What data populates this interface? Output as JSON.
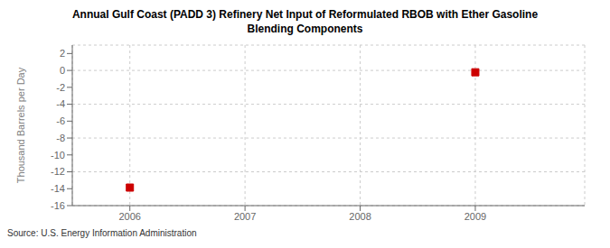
{
  "chart_data": {
    "type": "scatter",
    "title": "Annual Gulf Coast (PADD 3) Refinery Net Input of Reformulated RBOB with Ether Gasoline\nBlending Components",
    "ylabel": "Thousand Barrels per Day",
    "annotations": [
      "Source: U.S. Energy Information Administration"
    ],
    "x": [
      2006,
      2009
    ],
    "values": [
      -13.866,
      -0.219
    ],
    "color": "#cc0000",
    "marker": "square",
    "xlim": [
      2005.5,
      2009.95
    ],
    "ylim": [
      -16,
      3
    ],
    "xticks": [
      2006,
      2007,
      2008,
      2009
    ],
    "yticks": [
      2,
      0,
      -2,
      -4,
      -6,
      -8,
      -10,
      -12,
      -14,
      -16
    ],
    "grid": true
  }
}
